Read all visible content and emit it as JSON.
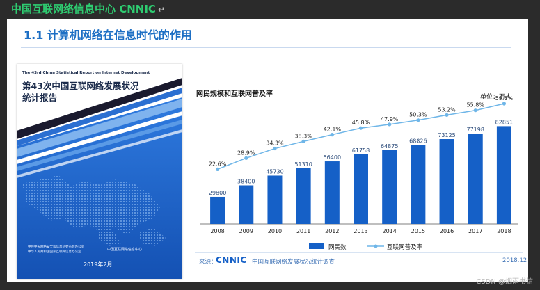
{
  "header": {
    "title": "中国互联网络信息中心 CNNIC",
    "return_glyph": "↵"
  },
  "slide": {
    "title": "1.1 计算机网络在信息时代的作用",
    "cover": {
      "subtitle_en": "The 43rd China Statistical Report on Internet Development",
      "title_line1": "第43次中国互联网络发展状况",
      "title_line2": "统计报告",
      "footer_line1": "中共中央网络安全和信息化委员会办公室",
      "footer_line2": "中华人民共和国国家互联网信息办公室",
      "organization": "中国互联网络信息中心",
      "date": "2019年2月"
    },
    "chart_title": "网民规模和互联网普及率",
    "unit": "单位：万人",
    "legend": {
      "bar": "网民数",
      "line": "互联网普及率"
    },
    "source_label": "来源：",
    "source_logo": "CNNIC",
    "source_text": "中国互联网络发展状况统计调查",
    "source_date": "2018.12"
  },
  "chart_data": {
    "type": "bar",
    "title": "网民规模和互联网普及率",
    "categories": [
      "2008",
      "2009",
      "2010",
      "2011",
      "2012",
      "2013",
      "2014",
      "2015",
      "2016",
      "2017",
      "2018"
    ],
    "series": [
      {
        "name": "网民数",
        "type": "bar",
        "values": [
          29800,
          38400,
          45730,
          51310,
          56400,
          61758,
          64875,
          68826,
          73125,
          77198,
          82851
        ]
      },
      {
        "name": "互联网普及率",
        "type": "line",
        "values": [
          22.6,
          28.9,
          34.3,
          38.3,
          42.1,
          45.8,
          47.9,
          50.3,
          53.2,
          55.8,
          59.6
        ],
        "labels": [
          "22.6%",
          "28.9%",
          "34.3%",
          "38.3%",
          "42.1%",
          "45.8%",
          "47.9%",
          "50.3%",
          "53.2%",
          "55.8%",
          "59.6%"
        ]
      }
    ],
    "ylim_bar": [
      0,
      90000
    ],
    "ylim_line": [
      0,
      60
    ],
    "ylabel": "单位：万人",
    "colors": {
      "bar": "#1560c7",
      "line": "#6fb6e8",
      "bar_label": "#2b4b7a",
      "line_label": "#222222"
    }
  },
  "watermark": "CSDN @烟雨书信"
}
